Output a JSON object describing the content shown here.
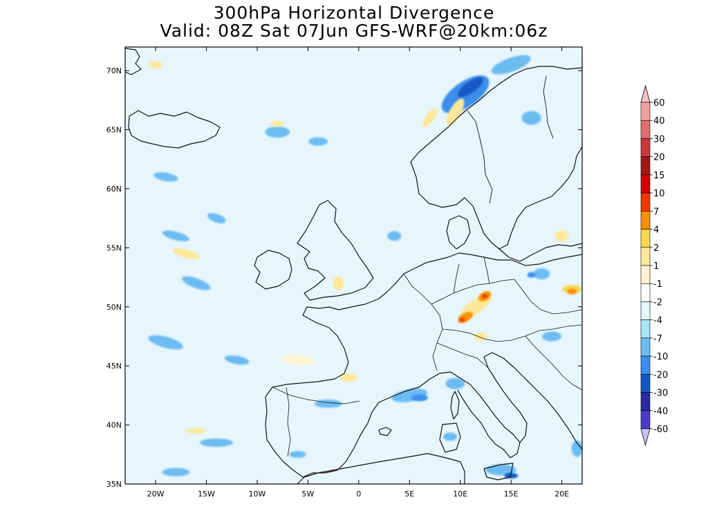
{
  "title": "300hPa Horizontal Divergence",
  "subtitle": "Valid: 08Z Sat 07Jun GFS-WRF@20km:06z",
  "map": {
    "lon_range": [
      -23,
      22
    ],
    "lat_range": [
      35,
      72
    ],
    "lat_ticks": [
      {
        "value": 70,
        "label": "70N"
      },
      {
        "value": 65,
        "label": "65N"
      },
      {
        "value": 60,
        "label": "60N"
      },
      {
        "value": 55,
        "label": "55N"
      },
      {
        "value": 50,
        "label": "50N"
      },
      {
        "value": 45,
        "label": "45N"
      },
      {
        "value": 40,
        "label": "40N"
      },
      {
        "value": 35,
        "label": "35N"
      }
    ],
    "lon_ticks": [
      {
        "value": -20,
        "label": "20W"
      },
      {
        "value": -15,
        "label": "15W"
      },
      {
        "value": -10,
        "label": "10W"
      },
      {
        "value": -5,
        "label": "5W"
      },
      {
        "value": 0,
        "label": "0"
      },
      {
        "value": 5,
        "label": "5E"
      },
      {
        "value": 10,
        "label": "10E"
      },
      {
        "value": 15,
        "label": "15E"
      },
      {
        "value": 20,
        "label": "20E"
      }
    ]
  },
  "colorbar": {
    "levels": [
      {
        "label": "60",
        "color": "#f0a0a0"
      },
      {
        "label": "40",
        "color": "#e07070"
      },
      {
        "label": "30",
        "color": "#c83838"
      },
      {
        "label": "20",
        "color": "#a01818"
      },
      {
        "label": "15",
        "color": "#d00000"
      },
      {
        "label": "10",
        "color": "#f03800"
      },
      {
        "label": "7",
        "color": "#f89000"
      },
      {
        "label": "4",
        "color": "#f8d850"
      },
      {
        "label": "2",
        "color": "#fde89a"
      },
      {
        "label": "1",
        "color": "#fff4d2"
      },
      {
        "label": "-1",
        "color": "#ffffff"
      },
      {
        "label": "-2",
        "color": "#e6f6fc"
      },
      {
        "label": "-4",
        "color": "#a8e6f6"
      },
      {
        "label": "-7",
        "color": "#6cbcf2"
      },
      {
        "label": "-10",
        "color": "#3c8eec"
      },
      {
        "label": "-20",
        "color": "#1258c4"
      },
      {
        "label": "-30",
        "color": "#2a2aa0"
      },
      {
        "label": "-40",
        "color": "#4a3cc8"
      },
      {
        "label": "-60",
        "color": "#6c5ce0"
      }
    ],
    "top_arrow_color": "#f6c0c0",
    "bottom_arrow_color": "#c8c0f8",
    "extra_color": "#a090f0"
  },
  "field_colors": {
    "background": "#e6f6fc",
    "weak_negative": "#a8e6f6",
    "moderate_negative": "#6cbcf2",
    "strong_negative": "#3c8eec",
    "very_strong_negative": "#1258c4",
    "weak_positive": "#fff4d2",
    "moderate_positive": "#fde89a",
    "strong_positive": "#f89000",
    "very_strong_positive": "#f03800"
  },
  "features": [
    {
      "name": "blob-norway-coast",
      "color": "#3c8eec",
      "lon": 10.5,
      "lat": 68,
      "rx": 40,
      "ry": 18,
      "rot": -35
    },
    {
      "name": "blob-norway-core",
      "color": "#1258c4",
      "lon": 11,
      "lat": 68.6,
      "rx": 22,
      "ry": 8,
      "rot": -35
    },
    {
      "name": "blob-arctic-1",
      "color": "#6cbcf2",
      "lon": 15,
      "lat": 70.5,
      "rx": 30,
      "ry": 10,
      "rot": -20
    },
    {
      "name": "blob-sweden",
      "color": "#6cbcf2",
      "lon": 17,
      "lat": 66,
      "rx": 14,
      "ry": 10,
      "rot": 0
    },
    {
      "name": "blob-iceland-s",
      "color": "#6cbcf2",
      "lon": -8,
      "lat": 64.8,
      "rx": 18,
      "ry": 8,
      "rot": 0
    },
    {
      "name": "blob-atl-1",
      "color": "#6cbcf2",
      "lon": -4,
      "lat": 64,
      "rx": 14,
      "ry": 6,
      "rot": 0
    },
    {
      "name": "blob-atl-2",
      "color": "#6cbcf2",
      "lon": -19,
      "lat": 61,
      "rx": 18,
      "ry": 6,
      "rot": 10
    },
    {
      "name": "blob-atl-3",
      "color": "#6cbcf2",
      "lon": -18,
      "lat": 56,
      "rx": 20,
      "ry": 6,
      "rot": 15
    },
    {
      "name": "blob-atl-4",
      "color": "#6cbcf2",
      "lon": -14,
      "lat": 57.5,
      "rx": 14,
      "ry": 6,
      "rot": 20
    },
    {
      "name": "blob-atl-5",
      "color": "#6cbcf2",
      "lon": -16,
      "lat": 52,
      "rx": 22,
      "ry": 7,
      "rot": 20
    },
    {
      "name": "blob-atl-6",
      "color": "#6cbcf2",
      "lon": -19,
      "lat": 47,
      "rx": 26,
      "ry": 8,
      "rot": 15
    },
    {
      "name": "blob-atl-7",
      "color": "#6cbcf2",
      "lon": -12,
      "lat": 45.5,
      "rx": 18,
      "ry": 6,
      "rot": 10
    },
    {
      "name": "blob-atl-8",
      "color": "#6cbcf2",
      "lon": -14,
      "lat": 38.5,
      "rx": 24,
      "ry": 6,
      "rot": 0
    },
    {
      "name": "blob-atl-9",
      "color": "#6cbcf2",
      "lon": -18,
      "lat": 36,
      "rx": 20,
      "ry": 6,
      "rot": 0
    },
    {
      "name": "blob-atl-10",
      "color": "#6cbcf2",
      "lon": -6,
      "lat": 37.5,
      "rx": 12,
      "ry": 5,
      "rot": 0
    },
    {
      "name": "blob-north-sea",
      "color": "#6cbcf2",
      "lon": 3.5,
      "lat": 56,
      "rx": 10,
      "ry": 7,
      "rot": 0
    },
    {
      "name": "blob-spain-n",
      "color": "#6cbcf2",
      "lon": -3,
      "lat": 41.8,
      "rx": 20,
      "ry": 6,
      "rot": 0
    },
    {
      "name": "blob-spain-ne",
      "color": "#6cbcf2",
      "lon": 5,
      "lat": 42.5,
      "rx": 26,
      "ry": 9,
      "rot": -10
    },
    {
      "name": "blob-gulf-lion",
      "color": "#3c8eec",
      "lon": 6,
      "lat": 42.3,
      "rx": 12,
      "ry": 5,
      "rot": 0
    },
    {
      "name": "blob-italy-n",
      "color": "#6cbcf2",
      "lon": 9.5,
      "lat": 43.5,
      "rx": 14,
      "ry": 8,
      "rot": 0
    },
    {
      "name": "blob-sardinia",
      "color": "#6cbcf2",
      "lon": 9,
      "lat": 39,
      "rx": 10,
      "ry": 6,
      "rot": 0
    },
    {
      "name": "blob-poland",
      "color": "#6cbcf2",
      "lon": 18,
      "lat": 52.8,
      "rx": 12,
      "ry": 8,
      "rot": 0
    },
    {
      "name": "blob-poland-core",
      "color": "#3c8eec",
      "lon": 17,
      "lat": 52.7,
      "rx": 6,
      "ry": 4,
      "rot": 0
    },
    {
      "name": "blob-hungary",
      "color": "#6cbcf2",
      "lon": 19,
      "lat": 47.5,
      "rx": 14,
      "ry": 7,
      "rot": 0
    },
    {
      "name": "blob-sicily",
      "color": "#6cbcf2",
      "lon": 14,
      "lat": 36.2,
      "rx": 22,
      "ry": 8,
      "rot": 0
    },
    {
      "name": "blob-sicily-core",
      "color": "#1258c4",
      "lon": 15,
      "lat": 35.7,
      "rx": 10,
      "ry": 4,
      "rot": 0
    },
    {
      "name": "blob-balkan",
      "color": "#6cbcf2",
      "lon": 21.5,
      "lat": 38,
      "rx": 8,
      "ry": 12,
      "rot": 0
    },
    {
      "name": "pos-ireland-w",
      "color": "#fde89a",
      "lon": -17,
      "lat": 54.5,
      "rx": 20,
      "ry": 6,
      "rot": 15
    },
    {
      "name": "pos-atl-a",
      "color": "#fff4d2",
      "lon": -6,
      "lat": 45.5,
      "rx": 24,
      "ry": 7,
      "rot": 5
    },
    {
      "name": "pos-biscay",
      "color": "#fde89a",
      "lon": -1,
      "lat": 44,
      "rx": 12,
      "ry": 6,
      "rot": 0
    },
    {
      "name": "pos-scotland",
      "color": "#fde89a",
      "lon": -2,
      "lat": 52,
      "rx": 8,
      "ry": 10,
      "rot": 0
    },
    {
      "name": "pos-norway-w",
      "color": "#fde89a",
      "lon": 9.5,
      "lat": 66.5,
      "rx": 8,
      "ry": 22,
      "rot": 30
    },
    {
      "name": "pos-finland",
      "color": "#fde89a",
      "lon": 20,
      "lat": 56,
      "rx": 10,
      "ry": 8,
      "rot": 0
    },
    {
      "name": "pos-czech-band",
      "color": "#fde89a",
      "lon": 11.5,
      "lat": 50,
      "rx": 28,
      "ry": 10,
      "rot": -35
    },
    {
      "name": "pos-czech-core1",
      "color": "#f89000",
      "lon": 12.4,
      "lat": 50.9,
      "rx": 10,
      "ry": 6,
      "rot": -30
    },
    {
      "name": "pos-czech-core2",
      "color": "#f89000",
      "lon": 10.5,
      "lat": 49.1,
      "rx": 12,
      "ry": 6,
      "rot": -30
    },
    {
      "name": "pos-czech-hot1",
      "color": "#f03800",
      "lon": 12.4,
      "lat": 50.9,
      "rx": 4,
      "ry": 3,
      "rot": 0
    },
    {
      "name": "pos-czech-hot2",
      "color": "#f03800",
      "lon": 10.2,
      "lat": 48.9,
      "rx": 4,
      "ry": 3,
      "rot": 0
    },
    {
      "name": "pos-baltic-e",
      "color": "#f8d850",
      "lon": 21,
      "lat": 51.5,
      "rx": 14,
      "ry": 6,
      "rot": 0
    },
    {
      "name": "pos-baltic-e-core",
      "color": "#f89000",
      "lon": 21,
      "lat": 51.3,
      "rx": 7,
      "ry": 4,
      "rot": 0
    },
    {
      "name": "pos-alps",
      "color": "#fde89a",
      "lon": 12,
      "lat": 47.5,
      "rx": 10,
      "ry": 6,
      "rot": 0
    },
    {
      "name": "pos-scandi-coast",
      "color": "#fde89a",
      "lon": 7,
      "lat": 66,
      "rx": 6,
      "ry": 16,
      "rot": 35
    },
    {
      "name": "pos-arctic",
      "color": "#fde89a",
      "lon": -20,
      "lat": 70.5,
      "rx": 10,
      "ry": 5,
      "rot": 0
    },
    {
      "name": "pos-atl-mid",
      "color": "#fde89a",
      "lon": -8,
      "lat": 65.5,
      "rx": 10,
      "ry": 4,
      "rot": 0
    },
    {
      "name": "pos-atl-south",
      "color": "#fde89a",
      "lon": -16,
      "lat": 39.5,
      "rx": 14,
      "ry": 4,
      "rot": 0
    }
  ]
}
